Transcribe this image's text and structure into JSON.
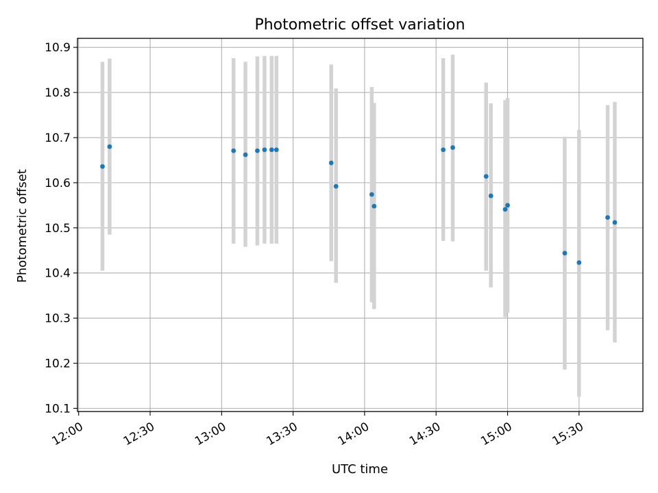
{
  "chart_data": {
    "type": "scatter",
    "title": "Photometric offset variation",
    "xlabel": "UTC time",
    "ylabel": "Photometric offset",
    "x_ticks": [
      "12:00",
      "12:30",
      "13:00",
      "13:30",
      "14:00",
      "14:30",
      "15:00",
      "15:30"
    ],
    "x_tick_minutes": [
      720,
      750,
      780,
      810,
      840,
      870,
      900,
      930
    ],
    "xlim_minutes": [
      719.5,
      956.8
    ],
    "y_ticks": [
      10.1,
      10.2,
      10.3,
      10.4,
      10.5,
      10.6,
      10.7,
      10.8,
      10.9
    ],
    "ylim": [
      10.093,
      10.92
    ],
    "grid": true,
    "point_color": "#1f77b4",
    "errorbar_color": "#d3d3d3",
    "points": [
      {
        "time": "12:10",
        "y": 10.636,
        "ylow": 10.405,
        "yhigh": 10.868
      },
      {
        "time": "12:13",
        "y": 10.68,
        "ylow": 10.485,
        "yhigh": 10.875
      },
      {
        "time": "13:05",
        "y": 10.671,
        "ylow": 10.465,
        "yhigh": 10.876
      },
      {
        "time": "13:10",
        "y": 10.662,
        "ylow": 10.458,
        "yhigh": 10.868
      },
      {
        "time": "13:15",
        "y": 10.671,
        "ylow": 10.461,
        "yhigh": 10.88
      },
      {
        "time": "13:18",
        "y": 10.673,
        "ylow": 10.465,
        "yhigh": 10.881
      },
      {
        "time": "13:21",
        "y": 10.673,
        "ylow": 10.465,
        "yhigh": 10.881
      },
      {
        "time": "13:23",
        "y": 10.673,
        "ylow": 10.465,
        "yhigh": 10.881
      },
      {
        "time": "13:46",
        "y": 10.644,
        "ylow": 10.426,
        "yhigh": 10.862
      },
      {
        "time": "13:48",
        "y": 10.592,
        "ylow": 10.378,
        "yhigh": 10.809
      },
      {
        "time": "14:03",
        "y": 10.574,
        "ylow": 10.335,
        "yhigh": 10.812
      },
      {
        "time": "14:04",
        "y": 10.548,
        "ylow": 10.32,
        "yhigh": 10.777
      },
      {
        "time": "14:33",
        "y": 10.673,
        "ylow": 10.471,
        "yhigh": 10.876
      },
      {
        "time": "14:37",
        "y": 10.678,
        "ylow": 10.47,
        "yhigh": 10.884
      },
      {
        "time": "14:51",
        "y": 10.614,
        "ylow": 10.405,
        "yhigh": 10.822
      },
      {
        "time": "14:53",
        "y": 10.571,
        "ylow": 10.368,
        "yhigh": 10.776
      },
      {
        "time": "14:59",
        "y": 10.541,
        "ylow": 10.302,
        "yhigh": 10.783
      },
      {
        "time": "15:00",
        "y": 10.55,
        "ylow": 10.312,
        "yhigh": 10.788
      },
      {
        "time": "15:24",
        "y": 10.444,
        "ylow": 10.186,
        "yhigh": 10.702
      },
      {
        "time": "15:30",
        "y": 10.423,
        "ylow": 10.126,
        "yhigh": 10.717
      },
      {
        "time": "15:42",
        "y": 10.523,
        "ylow": 10.273,
        "yhigh": 10.772
      },
      {
        "time": "15:45",
        "y": 10.512,
        "ylow": 10.246,
        "yhigh": 10.779
      }
    ]
  }
}
